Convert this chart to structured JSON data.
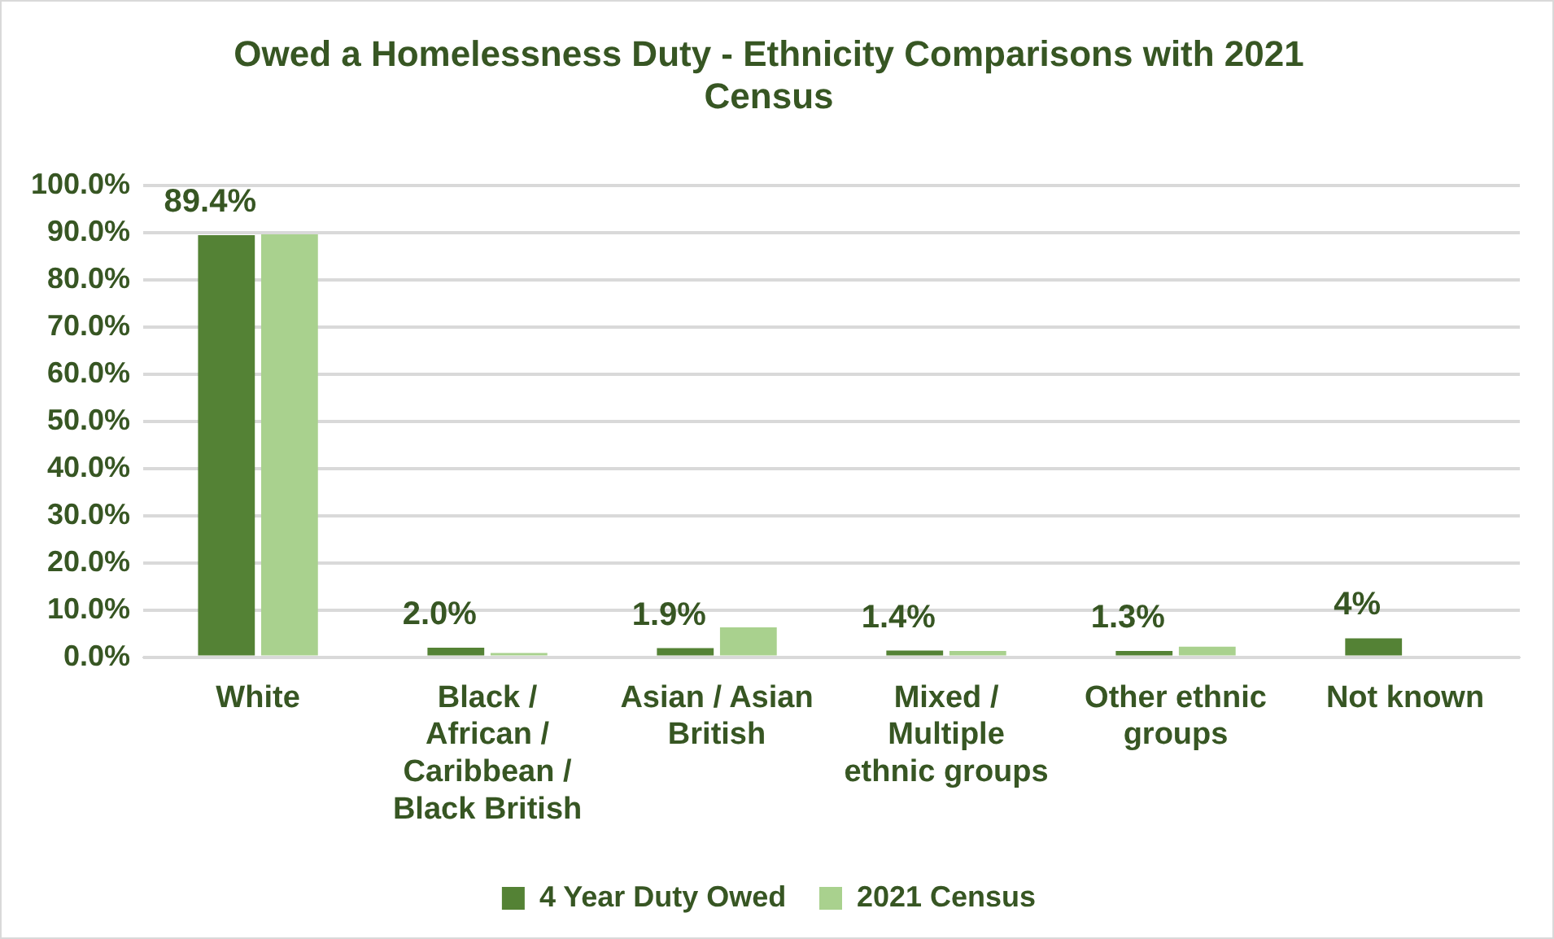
{
  "chart_data": {
    "type": "bar",
    "title": "Owed a Homelessness Duty - Ethnicity Comparisons with 2021 Census",
    "categories": [
      "White",
      "Black / African / Caribbean / Black British",
      "Asian / Asian British",
      "Mixed / Multiple ethnic groups",
      "Other ethnic groups",
      "Not known"
    ],
    "series": [
      {
        "name": "4 Year Duty Owed",
        "color": "#548235",
        "values": [
          89.4,
          2.0,
          1.9,
          1.4,
          1.3,
          4
        ],
        "value_labels": [
          "89.4%",
          "2.0%",
          "1.9%",
          "1.4%",
          "1.3%",
          "4%"
        ]
      },
      {
        "name": "2021 Census",
        "color": "#a9d18e",
        "values": [
          89.6,
          0.9,
          6.3,
          1.3,
          2.2,
          null
        ]
      }
    ],
    "ylim": [
      0,
      100
    ],
    "yticks": [
      {
        "value": 0,
        "label": "0.0%"
      },
      {
        "value": 10,
        "label": "10.0%"
      },
      {
        "value": 20,
        "label": "20.0%"
      },
      {
        "value": 30,
        "label": "30.0%"
      },
      {
        "value": 40,
        "label": "40.0%"
      },
      {
        "value": 50,
        "label": "50.0%"
      },
      {
        "value": 60,
        "label": "60.0%"
      },
      {
        "value": 70,
        "label": "70.0%"
      },
      {
        "value": 80,
        "label": "80.0%"
      },
      {
        "value": 90,
        "label": "90.0%"
      },
      {
        "value": 100,
        "label": "100.0%"
      }
    ],
    "grid": "y",
    "legend": "bottom"
  }
}
